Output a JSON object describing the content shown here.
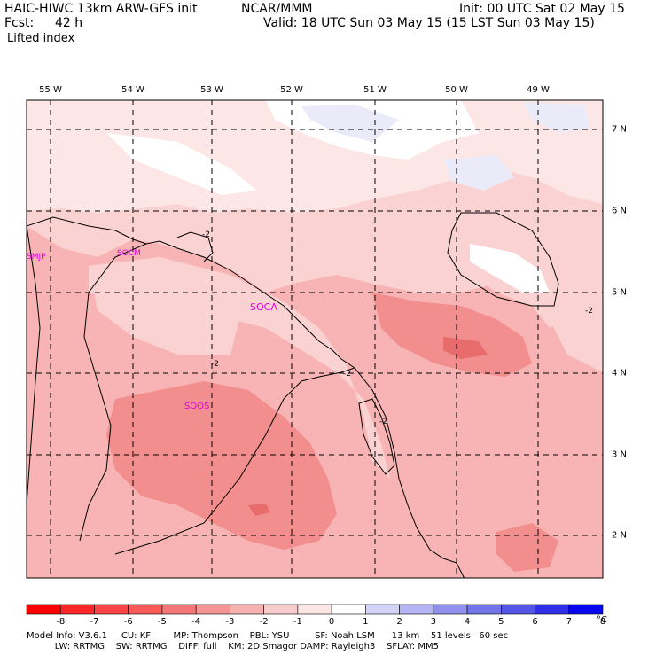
{
  "header": {
    "model": "HAIC-HIWC 13km ARW-GFS init",
    "org": "NCAR/MMM",
    "init": "Init: 00 UTC Sat 02 May 15",
    "fcst_label": "Fcst:",
    "fcst_value": "42 h",
    "valid": "Valid: 18 UTC Sun 03 May 15 (15 LST Sun 03 May 15)",
    "field": "Lifted index"
  },
  "map": {
    "lon_labels": [
      "55 W",
      "54 W",
      "53 W",
      "52 W",
      "51 W",
      "50 W",
      "49 W"
    ],
    "lat_labels": [
      "7 N",
      "6 N",
      "5 N",
      "4 N",
      "3 N",
      "2 N"
    ],
    "stations": [
      "SMJP",
      "SOCM",
      "SOCA",
      "SOOS"
    ],
    "contour_label": "-2",
    "colors": {
      "base": "#f8b4b4",
      "light": "#fad2d2",
      "lighter": "#fce6e6",
      "white": "#ffffff",
      "bluish": "#eaeaf8",
      "dark": "#f28e8e",
      "darkest": "#e86c6c",
      "station": "#e000e0"
    }
  },
  "colorbar": {
    "labels": [
      "-8",
      "-7",
      "-6",
      "-5",
      "-4",
      "-3",
      "-2",
      "-1",
      "0",
      "1",
      "2",
      "3",
      "4",
      "5",
      "6",
      "7",
      "8"
    ],
    "unit": "°C",
    "colors": [
      "#ff0000",
      "#ff2828",
      "#ff4646",
      "#ff5a5a",
      "#f57676",
      "#f49494",
      "#f7b1b1",
      "#f9cccc",
      "#fde6e6",
      "#ffffff",
      "#d4d4f8",
      "#b4b4f4",
      "#9090ee",
      "#7474ea",
      "#5454e6",
      "#3030e8",
      "#0808f0"
    ]
  },
  "footer": {
    "line1": "Model Info: V3.6.1     CU: KF        MP: Thompson    PBL: YSU         SF: Noah LSM      13 km    51 levels   60 sec",
    "line2": "          LW: RRTMG    SW: RRTMG    DIFF: full    KM: 2D Smagor DAMP: Rayleigh3    SFLAY: MM5"
  }
}
